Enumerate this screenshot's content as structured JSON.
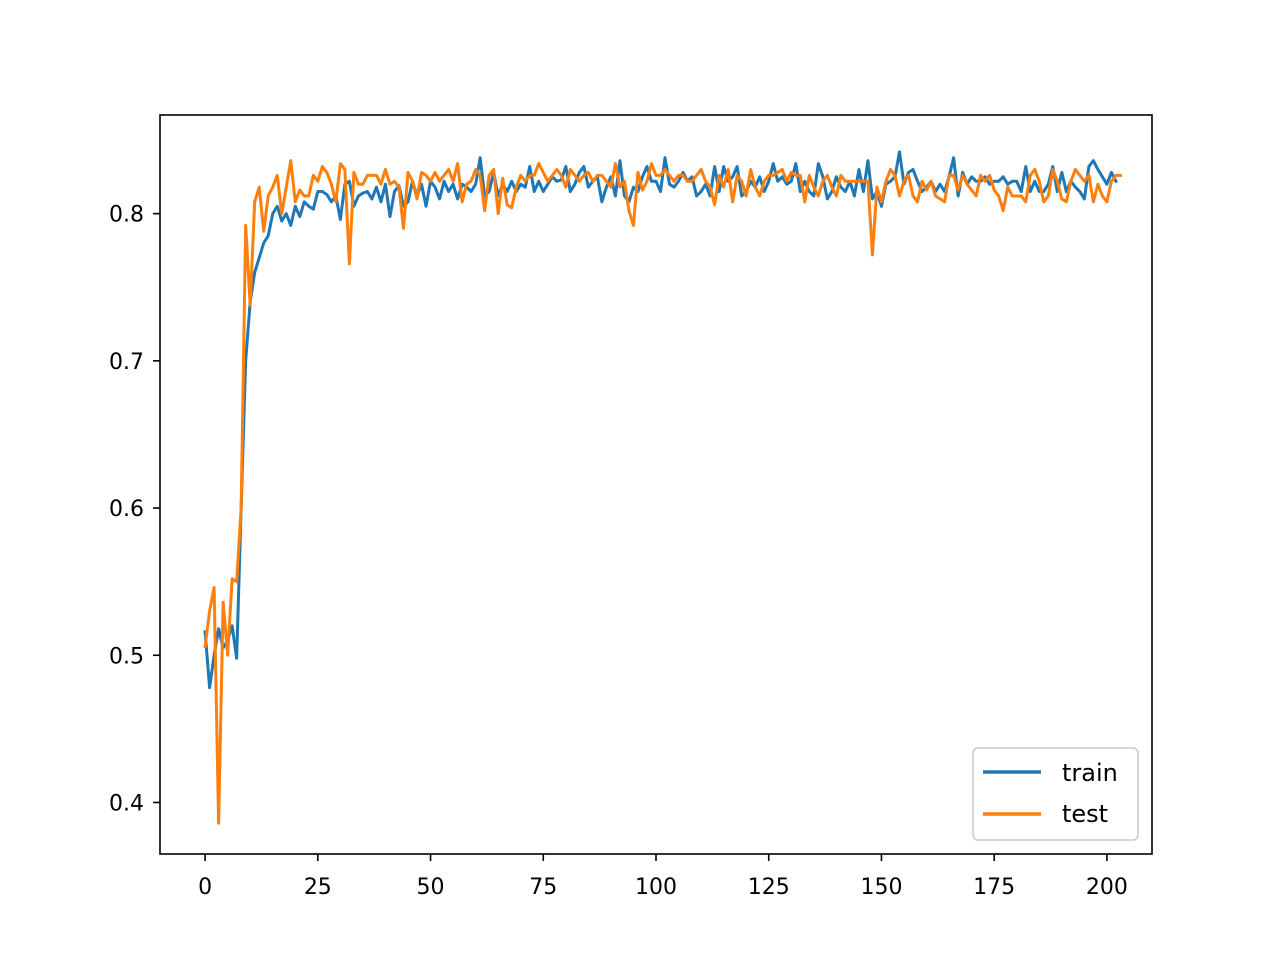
{
  "chart_data": {
    "type": "line",
    "title": "",
    "xlabel": "",
    "ylabel": "",
    "xlim": [
      -10,
      210
    ],
    "ylim": [
      0.365,
      0.867
    ],
    "x_ticks": [
      0,
      25,
      50,
      75,
      100,
      125,
      150,
      175,
      200
    ],
    "y_ticks": [
      0.4,
      0.5,
      0.6,
      0.7,
      0.8
    ],
    "x_tick_labels": [
      "0",
      "25",
      "50",
      "75",
      "100",
      "125",
      "150",
      "175",
      "200"
    ],
    "y_tick_labels": [
      "0.4",
      "0.5",
      "0.6",
      "0.7",
      "0.8"
    ],
    "grid": false,
    "legend_position": "lower-right",
    "series": [
      {
        "name": "train",
        "color": "#1f77b4",
        "x_start": 0,
        "x_step": 1,
        "values": [
          0.516,
          0.478,
          0.5,
          0.518,
          0.505,
          0.51,
          0.52,
          0.498,
          0.6,
          0.7,
          0.74,
          0.76,
          0.77,
          0.78,
          0.785,
          0.8,
          0.805,
          0.795,
          0.8,
          0.792,
          0.805,
          0.798,
          0.808,
          0.805,
          0.803,
          0.815,
          0.815,
          0.813,
          0.808,
          0.812,
          0.796,
          0.82,
          0.822,
          0.805,
          0.812,
          0.814,
          0.815,
          0.81,
          0.818,
          0.808,
          0.82,
          0.798,
          0.815,
          0.819,
          0.805,
          0.808,
          0.822,
          0.812,
          0.82,
          0.805,
          0.822,
          0.818,
          0.81,
          0.822,
          0.815,
          0.82,
          0.81,
          0.82,
          0.818,
          0.815,
          0.82,
          0.838,
          0.812,
          0.815,
          0.828,
          0.812,
          0.82,
          0.815,
          0.822,
          0.815,
          0.82,
          0.818,
          0.832,
          0.815,
          0.822,
          0.815,
          0.82,
          0.825,
          0.822,
          0.823,
          0.832,
          0.815,
          0.82,
          0.828,
          0.832,
          0.818,
          0.822,
          0.825,
          0.808,
          0.818,
          0.825,
          0.812,
          0.836,
          0.812,
          0.808,
          0.818,
          0.815,
          0.825,
          0.832,
          0.822,
          0.822,
          0.815,
          0.838,
          0.82,
          0.818,
          0.822,
          0.828,
          0.822,
          0.825,
          0.812,
          0.815,
          0.82,
          0.812,
          0.832,
          0.815,
          0.832,
          0.822,
          0.825,
          0.832,
          0.812,
          0.815,
          0.822,
          0.818,
          0.825,
          0.815,
          0.822,
          0.834,
          0.822,
          0.825,
          0.82,
          0.822,
          0.834,
          0.815,
          0.822,
          0.815,
          0.812,
          0.834,
          0.825,
          0.81,
          0.815,
          0.825,
          0.818,
          0.815,
          0.822,
          0.812,
          0.83,
          0.815,
          0.836,
          0.81,
          0.815,
          0.805,
          0.82,
          0.822,
          0.825,
          0.842,
          0.82,
          0.828,
          0.83,
          0.822,
          0.815,
          0.818,
          0.822,
          0.815,
          0.82,
          0.815,
          0.825,
          0.838,
          0.812,
          0.828,
          0.82,
          0.825,
          0.822,
          0.822,
          0.825,
          0.82,
          0.822,
          0.822,
          0.825,
          0.82,
          0.822,
          0.822,
          0.815,
          0.832,
          0.815,
          0.822,
          0.815,
          0.815,
          0.82,
          0.832,
          0.815,
          0.828,
          0.815,
          0.822,
          0.818,
          0.815,
          0.81,
          0.832,
          0.836,
          0.83,
          0.825,
          0.82,
          0.828,
          0.822
        ]
      },
      {
        "name": "test",
        "color": "#ff7f0e",
        "x_start": 0,
        "x_step": 1,
        "values": [
          0.506,
          0.53,
          0.546,
          0.386,
          0.536,
          0.5,
          0.552,
          0.55,
          0.6,
          0.792,
          0.738,
          0.808,
          0.818,
          0.788,
          0.812,
          0.818,
          0.826,
          0.8,
          0.818,
          0.836,
          0.808,
          0.816,
          0.812,
          0.812,
          0.826,
          0.822,
          0.832,
          0.828,
          0.82,
          0.808,
          0.834,
          0.83,
          0.766,
          0.828,
          0.82,
          0.82,
          0.826,
          0.826,
          0.826,
          0.82,
          0.83,
          0.82,
          0.822,
          0.818,
          0.79,
          0.828,
          0.822,
          0.81,
          0.828,
          0.826,
          0.822,
          0.828,
          0.822,
          0.826,
          0.83,
          0.822,
          0.834,
          0.808,
          0.82,
          0.822,
          0.83,
          0.826,
          0.802,
          0.826,
          0.83,
          0.8,
          0.824,
          0.806,
          0.804,
          0.818,
          0.826,
          0.822,
          0.826,
          0.826,
          0.834,
          0.828,
          0.822,
          0.826,
          0.83,
          0.826,
          0.818,
          0.83,
          0.826,
          0.822,
          0.826,
          0.828,
          0.822,
          0.826,
          0.826,
          0.822,
          0.818,
          0.834,
          0.818,
          0.822,
          0.802,
          0.792,
          0.828,
          0.816,
          0.822,
          0.834,
          0.826,
          0.826,
          0.83,
          0.826,
          0.822,
          0.826,
          0.826,
          0.822,
          0.822,
          0.826,
          0.83,
          0.822,
          0.818,
          0.806,
          0.826,
          0.818,
          0.83,
          0.808,
          0.826,
          0.822,
          0.812,
          0.83,
          0.818,
          0.812,
          0.822,
          0.826,
          0.826,
          0.828,
          0.83,
          0.822,
          0.828,
          0.826,
          0.826,
          0.808,
          0.826,
          0.818,
          0.812,
          0.822,
          0.826,
          0.818,
          0.812,
          0.826,
          0.822,
          0.822,
          0.822,
          0.822,
          0.822,
          0.822,
          0.772,
          0.818,
          0.808,
          0.822,
          0.83,
          0.826,
          0.812,
          0.822,
          0.826,
          0.812,
          0.808,
          0.822,
          0.816,
          0.822,
          0.812,
          0.81,
          0.808,
          0.826,
          0.826,
          0.816,
          0.826,
          0.82,
          0.816,
          0.812,
          0.826,
          0.822,
          0.826,
          0.816,
          0.812,
          0.802,
          0.818,
          0.812,
          0.812,
          0.812,
          0.808,
          0.826,
          0.83,
          0.822,
          0.808,
          0.812,
          0.83,
          0.822,
          0.81,
          0.808,
          0.822,
          0.83,
          0.826,
          0.822,
          0.826,
          0.808,
          0.82,
          0.812,
          0.808,
          0.822,
          0.826,
          0.826
        ]
      }
    ]
  }
}
